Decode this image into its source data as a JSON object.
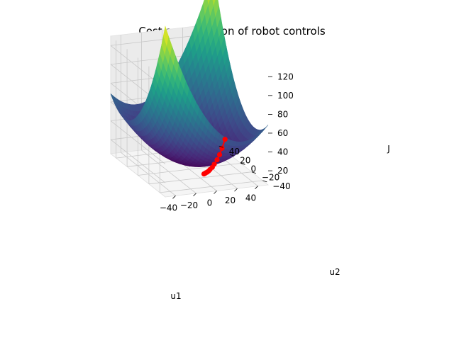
{
  "chart_data": {
    "type": "surface3d",
    "title": "Cost as a function of robot controls",
    "xlabel": "u1",
    "ylabel": "u2",
    "zlabel": "J",
    "xlim": [
      -50,
      50
    ],
    "ylim": [
      -50,
      50
    ],
    "zlim": [
      5,
      130
    ],
    "xticks": [
      -40,
      -20,
      0,
      20,
      40
    ],
    "yticks": [
      -40,
      -20,
      0,
      20,
      40
    ],
    "zticks": [
      20,
      40,
      60,
      80,
      100,
      120
    ],
    "grid": true,
    "colormap": "viridis",
    "surface": {
      "description_formula": "J = 10 + 0.0235*(u1^2 + u2^2) + 0.0235*u1*u2",
      "u_range": [
        -50,
        50
      ],
      "grid_n": 30
    },
    "path_series": {
      "color": "#ff0000",
      "u1": [
        33,
        28,
        24,
        20,
        16,
        13,
        10,
        8,
        6,
        4.5,
        3.5,
        2.8,
        2.2
      ],
      "u2": [
        -3,
        -7,
        -10,
        -13,
        -15.5,
        -17.5,
        -19,
        -20,
        -21,
        -21.5,
        -22,
        -22.3,
        -22.5
      ],
      "J": [
        34,
        27,
        22,
        18.5,
        15.5,
        13.5,
        12.2,
        11.3,
        10.8,
        10.5,
        10.3,
        10.2,
        10.1
      ]
    }
  }
}
